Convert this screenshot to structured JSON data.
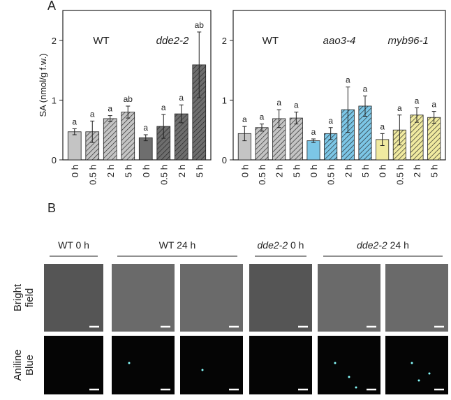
{
  "panel_labels": [
    "A",
    "B"
  ],
  "chart_data": [
    {
      "type": "bar",
      "y_label": "SA (nmol/g f.w.)",
      "ylim": [
        0,
        2.5
      ],
      "yticks": [
        0,
        1,
        2
      ],
      "groups": [
        {
          "name": "WT",
          "color": "#c4c4c4",
          "categories": [
            "0 h",
            "0.5 h",
            "2 h",
            "5 h"
          ],
          "hatched": [
            false,
            true,
            true,
            true
          ],
          "values": [
            0.47,
            0.47,
            0.69,
            0.8
          ],
          "errors": [
            0.05,
            0.18,
            0.05,
            0.1
          ],
          "letters": [
            "a",
            "a",
            "a",
            "ab"
          ]
        },
        {
          "name": "dde2-2",
          "color": "#6e6e6e",
          "categories": [
            "0 h",
            "0.5 h",
            "2 h",
            "5 h"
          ],
          "hatched": [
            false,
            true,
            true,
            true
          ],
          "values": [
            0.37,
            0.56,
            0.77,
            1.59
          ],
          "errors": [
            0.05,
            0.2,
            0.15,
            0.55
          ],
          "letters": [
            "a",
            "a",
            "a",
            "ab"
          ]
        }
      ]
    },
    {
      "type": "bar",
      "ylim": [
        0,
        2.5
      ],
      "yticks": [
        0,
        1,
        2
      ],
      "groups": [
        {
          "name": "WT",
          "color": "#c4c4c4",
          "categories": [
            "0 h",
            "0.5 h",
            "2 h",
            "5 h"
          ],
          "hatched": [
            false,
            true,
            true,
            true
          ],
          "values": [
            0.44,
            0.54,
            0.69,
            0.7
          ],
          "errors": [
            0.12,
            0.06,
            0.15,
            0.1
          ],
          "letters": [
            "a",
            "a",
            "a",
            "a"
          ]
        },
        {
          "name": "aao3-4",
          "color": "#7cc6e6",
          "categories": [
            "0 h",
            "0.5 h",
            "2 h",
            "5 h"
          ],
          "hatched": [
            false,
            true,
            true,
            true
          ],
          "values": [
            0.32,
            0.44,
            0.84,
            0.9
          ],
          "errors": [
            0.03,
            0.1,
            0.38,
            0.17
          ],
          "letters": [
            "a",
            "a",
            "a",
            "a"
          ]
        },
        {
          "name": "myb96-1",
          "color": "#f0eaa0",
          "categories": [
            "0 h",
            "0.5 h",
            "2 h",
            "5 h"
          ],
          "hatched": [
            false,
            true,
            true,
            true
          ],
          "values": [
            0.34,
            0.5,
            0.75,
            0.71
          ],
          "errors": [
            0.1,
            0.25,
            0.12,
            0.1
          ],
          "letters": [
            "a",
            "a",
            "a",
            "a"
          ]
        }
      ]
    }
  ],
  "micrographs": {
    "columns": [
      {
        "genotype": "WT",
        "time": "0 h"
      },
      {
        "genotype": "WT",
        "time": "24 h"
      },
      {
        "genotype": "dde2-2",
        "time": "0 h"
      },
      {
        "genotype": "dde2-2",
        "time": "24 h"
      }
    ],
    "rows": [
      [
        "Bright",
        "field"
      ],
      [
        "Aniline",
        "Blue"
      ]
    ]
  }
}
